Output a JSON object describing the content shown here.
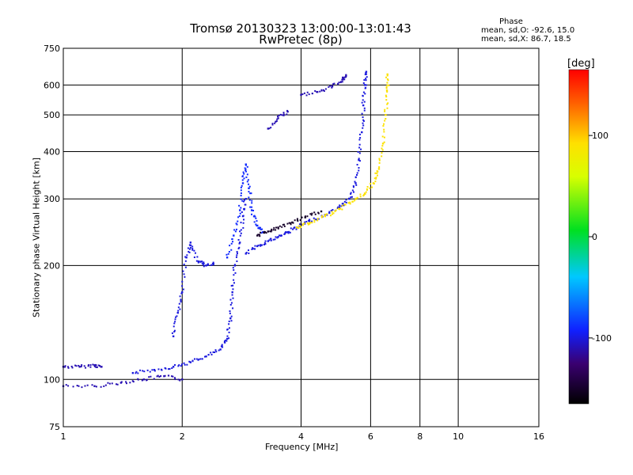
{
  "title_line1": "Tromsø 20130323 13:00:00-13:01:43",
  "title_line2": "RwPretec (8p)",
  "phase_header": "Phase",
  "phase_o": "mean, sd,O: -92.6, 15.0",
  "phase_x": "mean, sd,X:  86.7, 18.5",
  "colorbar_label": "[deg]",
  "colorbar_ticks": [
    "100",
    "0",
    "-100"
  ],
  "chart_data": {
    "type": "scatter",
    "title": "Tromsø 20130323 13:00:00-13:01:43",
    "subtitle": "RwPretec (8p)",
    "xlabel": "Frequency [MHz]",
    "ylabel": "Stationary phase Virtual Height [km]",
    "xscale": "log",
    "yscale": "log",
    "xlim": [
      1,
      16
    ],
    "ylim": [
      75,
      750
    ],
    "xticks": [
      "1",
      "2",
      "4",
      "6",
      "8",
      "10",
      "16"
    ],
    "yticks": [
      "75",
      "100",
      "200",
      "300",
      "400",
      "500",
      "600",
      "750"
    ],
    "grid": true,
    "colorbar": {
      "label": "[deg]",
      "range": [
        -165,
        165
      ],
      "ticks": [
        100,
        0,
        -100
      ]
    },
    "series": [
      {
        "points": [
          [
            1.0,
            108
          ],
          [
            1.1,
            108
          ],
          [
            1.2,
            109
          ],
          [
            1.25,
            108
          ]
        ],
        "phase": -110
      },
      {
        "points": [
          [
            1.0,
            96
          ],
          [
            1.2,
            96
          ],
          [
            1.4,
            98
          ],
          [
            1.6,
            100
          ],
          [
            1.8,
            102
          ],
          [
            2.0,
            100
          ]
        ],
        "phase": -110
      },
      {
        "points": [
          [
            1.5,
            104
          ],
          [
            1.7,
            106
          ],
          [
            1.9,
            108
          ],
          [
            2.1,
            111
          ],
          [
            2.3,
            115
          ],
          [
            2.5,
            120
          ],
          [
            2.6,
            128
          ],
          [
            2.65,
            145
          ],
          [
            2.68,
            170
          ],
          [
            2.72,
            200
          ],
          [
            2.8,
            230
          ],
          [
            2.85,
            270
          ],
          [
            2.9,
            300
          ]
        ],
        "phase": -100
      },
      {
        "points": [
          [
            1.9,
            130
          ],
          [
            1.95,
            150
          ],
          [
            2.0,
            170
          ],
          [
            2.05,
            210
          ],
          [
            2.1,
            230
          ],
          [
            2.2,
            205
          ],
          [
            2.3,
            200
          ],
          [
            2.4,
            202
          ]
        ],
        "phase": -100
      },
      {
        "points": [
          [
            2.6,
            210
          ],
          [
            2.7,
            240
          ],
          [
            2.8,
            280
          ],
          [
            2.85,
            330
          ],
          [
            2.9,
            370
          ],
          [
            2.95,
            320
          ],
          [
            3.0,
            280
          ],
          [
            3.1,
            255
          ],
          [
            3.2,
            245
          ]
        ],
        "phase": -90
      },
      {
        "points": [
          [
            2.9,
            215
          ],
          [
            3.1,
            225
          ],
          [
            3.3,
            232
          ],
          [
            3.5,
            238
          ],
          [
            3.7,
            245
          ],
          [
            3.9,
            252
          ],
          [
            4.2,
            262
          ],
          [
            4.6,
            272
          ],
          [
            5.0,
            285
          ],
          [
            5.3,
            300
          ],
          [
            5.5,
            330
          ],
          [
            5.6,
            380
          ],
          [
            5.7,
            450
          ],
          [
            5.75,
            530
          ],
          [
            5.8,
            600
          ],
          [
            5.85,
            650
          ]
        ],
        "phase": -100
      },
      {
        "points": [
          [
            3.1,
            240
          ],
          [
            3.3,
            246
          ],
          [
            3.5,
            252
          ],
          [
            3.8,
            260
          ],
          [
            4.1,
            268
          ],
          [
            4.5,
            278
          ]
        ],
        "phase": -150
      },
      {
        "points": [
          [
            3.3,
            460
          ],
          [
            3.5,
            490
          ],
          [
            3.7,
            510
          ]
        ],
        "phase": -110
      },
      {
        "points": [
          [
            4.0,
            565
          ],
          [
            4.4,
            575
          ],
          [
            4.8,
            595
          ],
          [
            5.1,
            620
          ],
          [
            5.2,
            635
          ]
        ],
        "phase": -110
      },
      {
        "points": [
          [
            3.9,
            252
          ],
          [
            4.2,
            258
          ],
          [
            4.6,
            270
          ],
          [
            5.0,
            282
          ],
          [
            5.4,
            295
          ],
          [
            5.8,
            310
          ],
          [
            6.1,
            330
          ],
          [
            6.3,
            360
          ],
          [
            6.45,
            420
          ],
          [
            6.55,
            500
          ],
          [
            6.6,
            580
          ],
          [
            6.62,
            640
          ]
        ],
        "phase": 90
      }
    ]
  }
}
